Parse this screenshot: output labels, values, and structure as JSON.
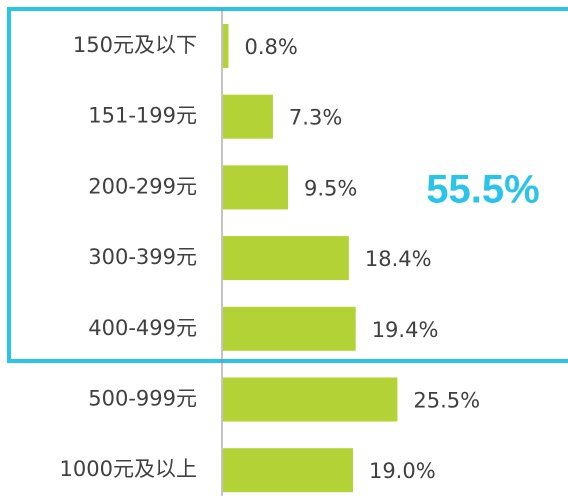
{
  "chart_data": {
    "type": "bar",
    "orientation": "horizontal",
    "categories": [
      "150元及以下",
      "151-199元",
      "200-299元",
      "300-399元",
      "400-499元",
      "500-999元",
      "1000元及以上"
    ],
    "values": [
      0.8,
      7.3,
      9.5,
      18.4,
      19.4,
      25.5,
      19.0
    ],
    "value_labels": [
      "0.8%",
      "7.3%",
      "9.5%",
      "18.4%",
      "19.4%",
      "25.5%",
      "19.0%"
    ],
    "color": "#b2d235",
    "annotation": "55.5%"
  }
}
